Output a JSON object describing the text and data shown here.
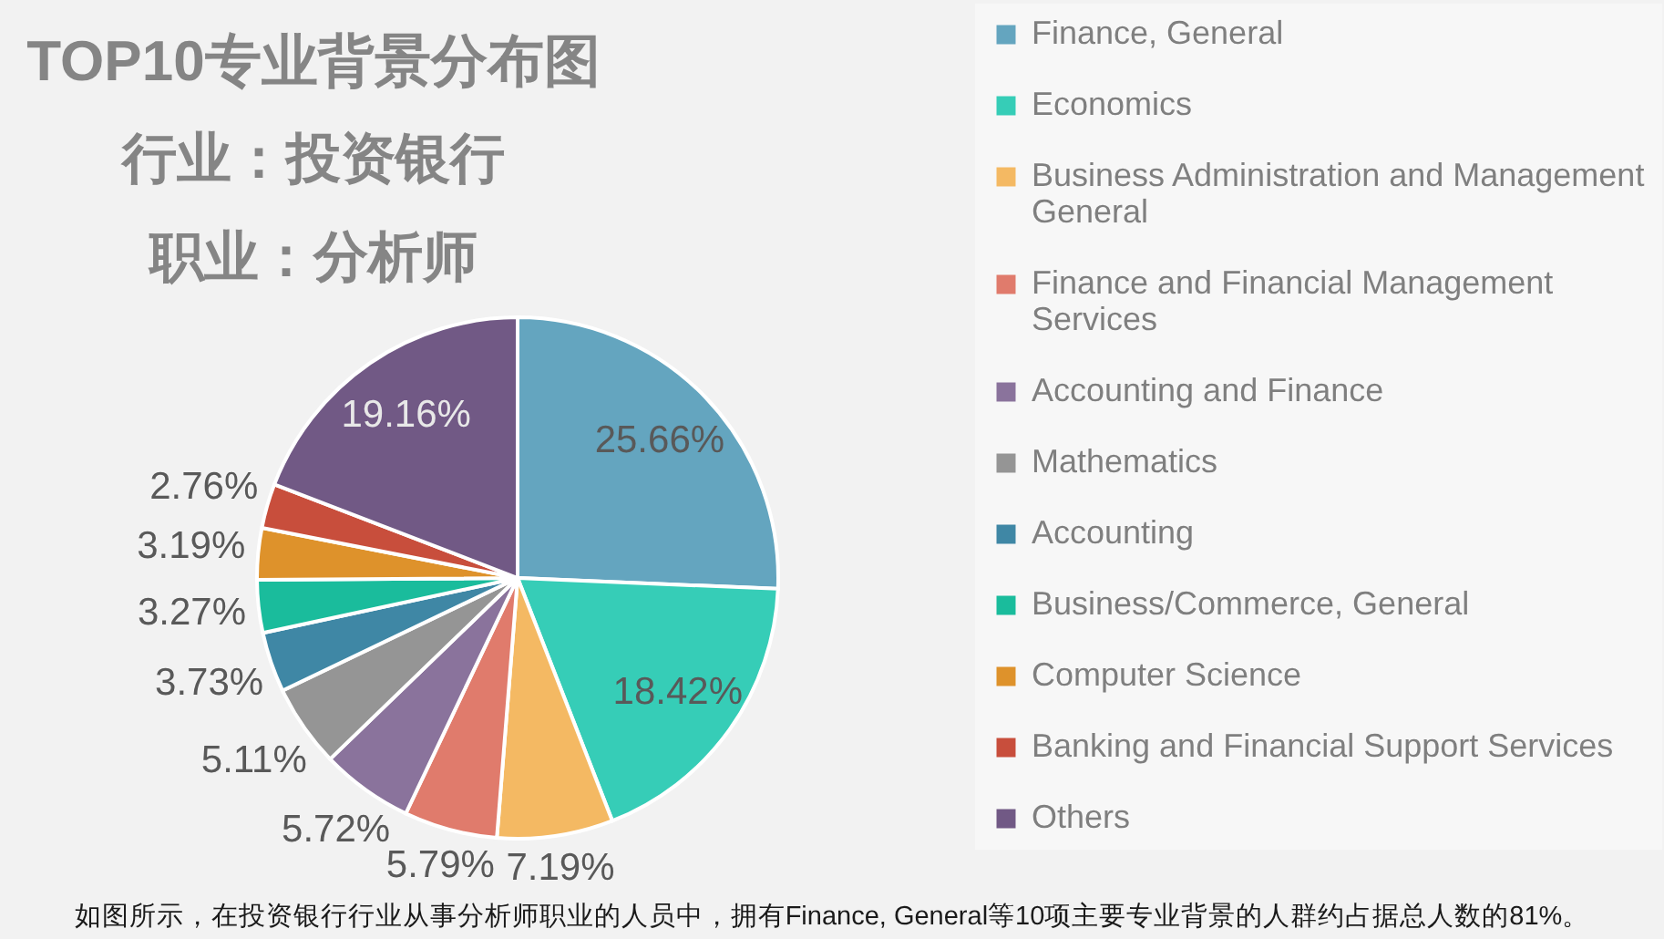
{
  "chart_data": {
    "type": "pie",
    "title": "TOP10专业背景分布图",
    "subtitle": [
      "行业：投资银行",
      "职业：分析师"
    ],
    "categories": [
      "Finance, General",
      "Economics",
      "Business Administration and Management General",
      "Finance and Financial Management Services",
      "Accounting and Finance",
      "Mathematics",
      "Accounting",
      "Business/Commerce, General",
      "Computer Science",
      "Banking and Financial Support Services",
      "Others"
    ],
    "values": [
      25.66,
      18.42,
      7.19,
      5.79,
      5.72,
      5.11,
      3.73,
      3.27,
      3.19,
      2.76,
      19.16
    ],
    "colors": [
      "#64a5bf",
      "#36cdb7",
      "#f4b963",
      "#e07b6c",
      "#8a739c",
      "#959595",
      "#3f87a5",
      "#1abc9c",
      "#de922b",
      "#c84e3c",
      "#715985"
    ],
    "value_labels": [
      "25.66%",
      "18.42%",
      "7.19%",
      "5.79%",
      "5.72%",
      "5.11%",
      "3.73%",
      "3.27%",
      "3.19%",
      "2.76%",
      "19.16%"
    ],
    "legend": "right",
    "annotations": [
      "如图所示，在投资银行行业从事分析师职业的人员中，拥有Finance, General等10项主要专业背景的人群约占据总人数的81%。"
    ]
  }
}
